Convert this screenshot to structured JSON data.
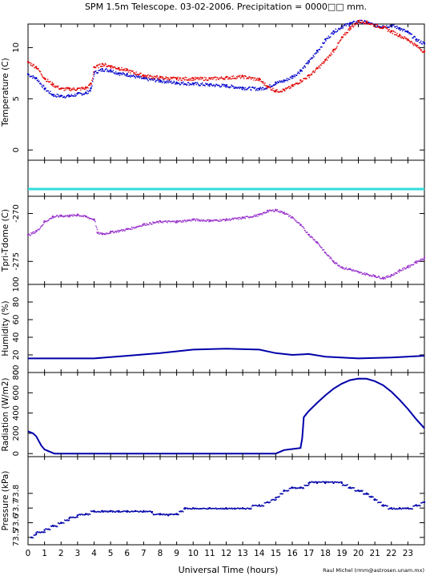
{
  "title": "SPM 1.5m Telescope. 03-02-2006. Precipitation = 0000□□ mm.",
  "xlabel": "Universal Time (hours)",
  "credit": "Raul Michel (rmm@astrosen.unam.mx)",
  "colors": {
    "blue": "#0000cc",
    "red": "#e00000",
    "purple": "#9933cc",
    "cyan": "#33dddd",
    "navy": "#0000aa"
  },
  "chart_data": [
    {
      "type": "scatter",
      "panel": "temperature",
      "ylabel": "Temperature (C)",
      "ylim": [
        -1,
        12.3
      ],
      "xlim": [
        0,
        24
      ],
      "yticks": [
        0,
        5,
        10
      ],
      "series": [
        {
          "color": "blue",
          "points": [
            [
              0,
              7.4
            ],
            [
              0.5,
              7.0
            ],
            [
              1,
              6.0
            ],
            [
              1.5,
              5.4
            ],
            [
              2,
              5.3
            ],
            [
              2.5,
              5.3
            ],
            [
              3,
              5.5
            ],
            [
              3.5,
              5.6
            ],
            [
              3.8,
              6.0
            ],
            [
              4,
              7.6
            ],
            [
              4.5,
              7.9
            ],
            [
              5,
              7.8
            ],
            [
              5.5,
              7.5
            ],
            [
              6,
              7.4
            ],
            [
              7,
              7.0
            ],
            [
              8,
              6.8
            ],
            [
              9,
              6.6
            ],
            [
              10,
              6.5
            ],
            [
              11,
              6.4
            ],
            [
              12,
              6.3
            ],
            [
              13,
              6.1
            ],
            [
              14,
              6.0
            ],
            [
              14.5,
              6.2
            ],
            [
              15,
              6.6
            ],
            [
              15.5,
              6.8
            ],
            [
              16,
              7.2
            ],
            [
              16.5,
              7.8
            ],
            [
              17,
              8.7
            ],
            [
              17.5,
              9.7
            ],
            [
              18,
              10.8
            ],
            [
              18.5,
              11.6
            ],
            [
              19,
              12.1
            ],
            [
              19.5,
              12.4
            ],
            [
              20,
              12.6
            ],
            [
              20.5,
              12.5
            ],
            [
              21,
              12.2
            ],
            [
              21.5,
              12.1
            ],
            [
              22,
              12.2
            ],
            [
              22.5,
              11.9
            ],
            [
              23,
              11.5
            ],
            [
              23.5,
              10.8
            ],
            [
              24,
              10.4
            ]
          ]
        },
        {
          "color": "red",
          "points": [
            [
              0,
              8.6
            ],
            [
              0.5,
              8.1
            ],
            [
              1,
              7.0
            ],
            [
              1.5,
              6.4
            ],
            [
              2,
              6.0
            ],
            [
              2.5,
              6.0
            ],
            [
              3,
              6.0
            ],
            [
              3.5,
              6.1
            ],
            [
              3.8,
              6.5
            ],
            [
              4,
              8.1
            ],
            [
              4.5,
              8.4
            ],
            [
              5,
              8.2
            ],
            [
              5.5,
              8.0
            ],
            [
              6,
              7.8
            ],
            [
              7,
              7.3
            ],
            [
              8,
              7.1
            ],
            [
              9,
              7.0
            ],
            [
              10,
              7.0
            ],
            [
              11,
              7.0
            ],
            [
              12,
              7.1
            ],
            [
              13,
              7.2
            ],
            [
              14,
              6.9
            ],
            [
              14.5,
              6.2
            ],
            [
              15,
              5.8
            ],
            [
              15.5,
              5.9
            ],
            [
              16,
              6.3
            ],
            [
              16.5,
              6.8
            ],
            [
              17,
              7.3
            ],
            [
              17.5,
              8.0
            ],
            [
              18,
              8.8
            ],
            [
              18.5,
              9.8
            ],
            [
              19,
              11.0
            ],
            [
              19.5,
              12.0
            ],
            [
              20,
              12.6
            ],
            [
              20.5,
              12.5
            ],
            [
              21,
              12.2
            ],
            [
              21.5,
              12.0
            ],
            [
              22,
              11.6
            ],
            [
              22.5,
              11.2
            ],
            [
              23,
              10.8
            ],
            [
              23.5,
              10.2
            ],
            [
              24,
              9.6
            ]
          ]
        }
      ]
    },
    {
      "type": "line",
      "panel": "strip",
      "ylabel": "",
      "ylim": [
        0,
        1
      ],
      "xlim": [
        0,
        24
      ],
      "series": [
        {
          "color": "cyan",
          "points": [
            [
              0,
              0.2
            ],
            [
              24,
              0.2
            ]
          ]
        }
      ]
    },
    {
      "type": "scatter",
      "panel": "tpri-tdome",
      "ylabel": "Tpri-Tdome (C)",
      "ylim": [
        -277.4,
        -268.2
      ],
      "xlim": [
        0,
        24
      ],
      "yticks": [
        -275,
        -270
      ],
      "series": [
        {
          "color": "purple",
          "points": [
            [
              0,
              -272.2
            ],
            [
              0.5,
              -271.8
            ],
            [
              1,
              -270.8
            ],
            [
              1.5,
              -270.3
            ],
            [
              2,
              -270.2
            ],
            [
              2.5,
              -270.2
            ],
            [
              3,
              -270.1
            ],
            [
              3.5,
              -270.3
            ],
            [
              4,
              -270.6
            ],
            [
              4.2,
              -272.0
            ],
            [
              4.5,
              -272.1
            ],
            [
              5,
              -271.9
            ],
            [
              6,
              -271.6
            ],
            [
              7,
              -271.1
            ],
            [
              8,
              -270.8
            ],
            [
              9,
              -270.8
            ],
            [
              10,
              -270.6
            ],
            [
              11,
              -270.7
            ],
            [
              12,
              -270.6
            ],
            [
              13,
              -270.4
            ],
            [
              14,
              -270.1
            ],
            [
              14.5,
              -269.7
            ],
            [
              15,
              -269.6
            ],
            [
              15.5,
              -269.9
            ],
            [
              16,
              -270.4
            ],
            [
              16.5,
              -271.2
            ],
            [
              17,
              -272.2
            ],
            [
              17.5,
              -273.0
            ],
            [
              18,
              -274.1
            ],
            [
              18.5,
              -275.0
            ],
            [
              19,
              -275.6
            ],
            [
              19.5,
              -275.8
            ],
            [
              20,
              -276.1
            ],
            [
              20.5,
              -276.3
            ],
            [
              21,
              -276.5
            ],
            [
              21.5,
              -276.7
            ],
            [
              22,
              -276.4
            ],
            [
              22.5,
              -275.9
            ],
            [
              23,
              -275.5
            ],
            [
              23.5,
              -275.0
            ],
            [
              24,
              -274.6
            ]
          ]
        }
      ]
    },
    {
      "type": "line",
      "panel": "humidity",
      "ylabel": "Humidity (%)",
      "ylim": [
        0,
        100
      ],
      "xlim": [
        0,
        24
      ],
      "yticks": [
        0,
        20,
        40,
        60,
        80,
        100
      ],
      "series": [
        {
          "color": "navy",
          "points": [
            [
              0,
              16
            ],
            [
              2,
              16
            ],
            [
              4,
              16
            ],
            [
              6,
              19
            ],
            [
              8,
              22
            ],
            [
              10,
              26
            ],
            [
              12,
              27
            ],
            [
              14,
              26
            ],
            [
              15,
              22
            ],
            [
              16,
              20
            ],
            [
              17,
              21
            ],
            [
              18,
              18
            ],
            [
              20,
              16
            ],
            [
              22,
              17
            ],
            [
              24,
              19
            ]
          ]
        }
      ]
    },
    {
      "type": "line",
      "panel": "radiation",
      "ylabel": "Radiation (W/m2)",
      "ylim": [
        -30,
        800
      ],
      "xlim": [
        0,
        24
      ],
      "yticks": [
        0,
        200,
        400,
        600,
        800
      ],
      "series": [
        {
          "color": "navy",
          "points": [
            [
              0,
              220
            ],
            [
              0.3,
              200
            ],
            [
              0.5,
              170
            ],
            [
              0.8,
              80
            ],
            [
              1,
              40
            ],
            [
              1.3,
              20
            ],
            [
              1.6,
              0
            ],
            [
              15,
              0
            ],
            [
              15.5,
              35
            ],
            [
              16,
              45
            ],
            [
              16.5,
              55
            ],
            [
              16.6,
              150
            ],
            [
              16.7,
              360
            ],
            [
              17,
              420
            ],
            [
              17.5,
              500
            ],
            [
              18,
              575
            ],
            [
              18.5,
              640
            ],
            [
              19,
              690
            ],
            [
              19.5,
              725
            ],
            [
              20,
              740
            ],
            [
              20.5,
              738
            ],
            [
              21,
              715
            ],
            [
              21.5,
              675
            ],
            [
              22,
              610
            ],
            [
              22.5,
              530
            ],
            [
              23,
              440
            ],
            [
              23.5,
              340
            ],
            [
              24,
              250
            ]
          ]
        }
      ]
    },
    {
      "type": "scatter",
      "panel": "pressure",
      "ylabel": "Pressure (kPa)",
      "ylim": [
        73.45,
        74.05
      ],
      "xlim": [
        0,
        24
      ],
      "yticks": [
        73.5,
        73.6,
        73.7,
        73.8
      ],
      "series": [
        {
          "color": "navy",
          "points": [
            [
              0.2,
              73.5
            ],
            [
              0.5,
              73.53
            ],
            [
              1,
              73.55
            ],
            [
              1.5,
              73.58
            ],
            [
              2,
              73.6
            ],
            [
              2.5,
              73.63
            ],
            [
              3,
              73.65
            ],
            [
              3.5,
              73.66
            ],
            [
              4,
              73.68
            ],
            [
              4.5,
              73.68
            ],
            [
              5,
              73.68
            ],
            [
              5.5,
              73.68
            ],
            [
              6,
              73.68
            ],
            [
              6.5,
              73.68
            ],
            [
              7,
              73.68
            ],
            [
              7.5,
              73.67
            ],
            [
              8,
              73.66
            ],
            [
              8.5,
              73.65
            ],
            [
              9,
              73.66
            ],
            [
              9.5,
              73.7
            ],
            [
              10,
              73.7
            ],
            [
              11,
              73.7
            ],
            [
              12,
              73.7
            ],
            [
              13,
              73.7
            ],
            [
              14,
              73.72
            ],
            [
              14.5,
              73.74
            ],
            [
              15,
              73.77
            ],
            [
              15.5,
              73.82
            ],
            [
              16,
              73.84
            ],
            [
              16.5,
              73.84
            ],
            [
              17,
              73.87
            ],
            [
              17.5,
              73.87
            ],
            [
              18,
              73.87
            ],
            [
              18.5,
              73.87
            ],
            [
              19,
              73.87
            ],
            [
              19.5,
              73.84
            ],
            [
              20,
              73.82
            ],
            [
              20.5,
              73.8
            ],
            [
              21,
              73.76
            ],
            [
              21.5,
              73.72
            ],
            [
              22,
              73.7
            ],
            [
              22.5,
              73.7
            ],
            [
              23,
              73.7
            ],
            [
              23.5,
              73.72
            ],
            [
              24,
              73.74
            ]
          ]
        }
      ]
    }
  ],
  "xticks": [
    0,
    1,
    2,
    3,
    4,
    5,
    6,
    7,
    8,
    9,
    10,
    11,
    12,
    13,
    14,
    15,
    16,
    17,
    18,
    19,
    20,
    21,
    22,
    23
  ]
}
